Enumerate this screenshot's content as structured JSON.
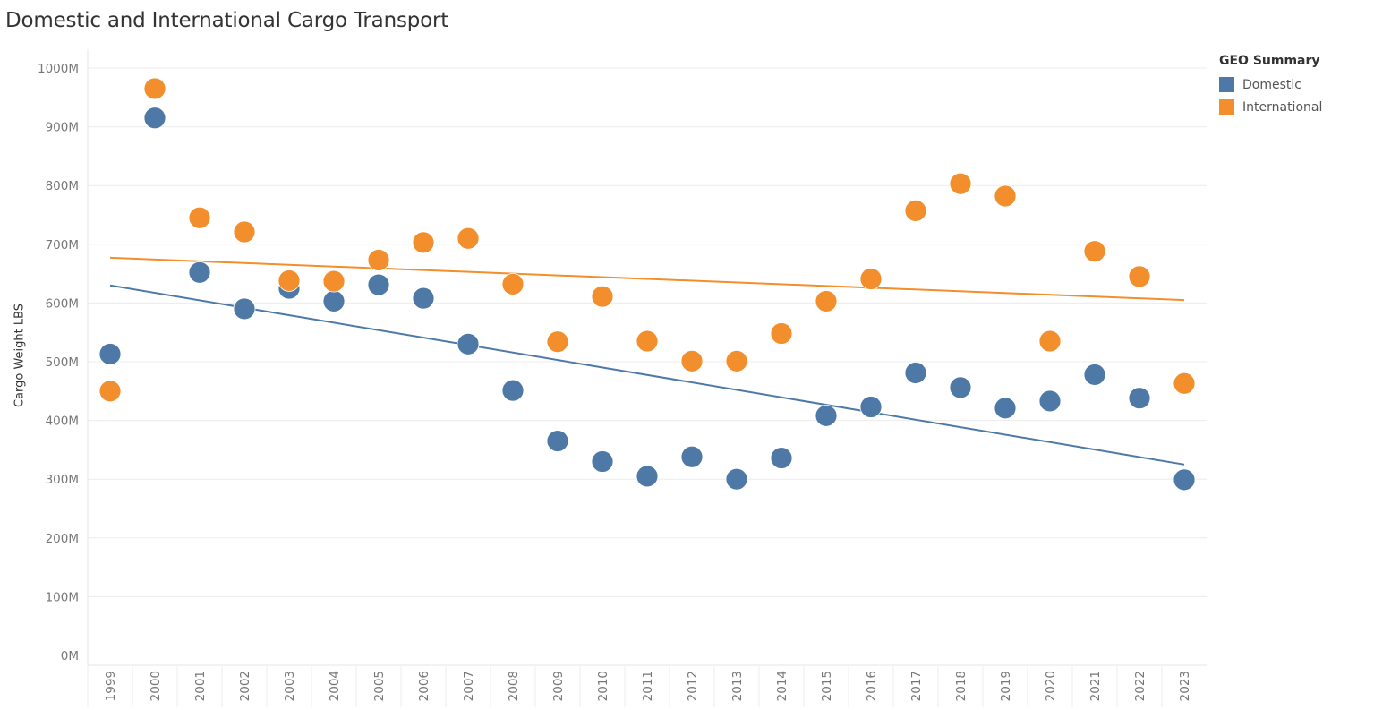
{
  "chart_data": {
    "type": "scatter",
    "title": "Domestic and International Cargo Transport",
    "xlabel": "",
    "ylabel": "Cargo Weight LBS",
    "categories": [
      "1999",
      "2000",
      "2001",
      "2002",
      "2003",
      "2004",
      "2005",
      "2006",
      "2007",
      "2008",
      "2009",
      "2010",
      "2011",
      "2012",
      "2013",
      "2014",
      "2015",
      "2016",
      "2017",
      "2018",
      "2019",
      "2020",
      "2021",
      "2022",
      "2023"
    ],
    "y_ticks": [
      "0M",
      "100M",
      "200M",
      "300M",
      "400M",
      "500M",
      "600M",
      "700M",
      "800M",
      "900M",
      "1000M"
    ],
    "ylim": [
      0,
      1000
    ],
    "y_unit": "M",
    "grid": true,
    "legend_title": "GEO Summary",
    "legend_position": "right",
    "series": [
      {
        "name": "Domestic",
        "color": "#4e79a7",
        "values": [
          513,
          915,
          652,
          590,
          625,
          603,
          631,
          608,
          530,
          451,
          365,
          330,
          305,
          338,
          300,
          336,
          408,
          423,
          481,
          456,
          421,
          433,
          478,
          438,
          299
        ],
        "trend": [
          630,
          325
        ]
      },
      {
        "name": "International",
        "color": "#f28e2b",
        "values": [
          450,
          965,
          745,
          721,
          638,
          637,
          673,
          703,
          710,
          632,
          534,
          611,
          535,
          501,
          501,
          548,
          603,
          641,
          757,
          803,
          782,
          535,
          688,
          645,
          463
        ],
        "trend": [
          677,
          605
        ]
      }
    ]
  }
}
